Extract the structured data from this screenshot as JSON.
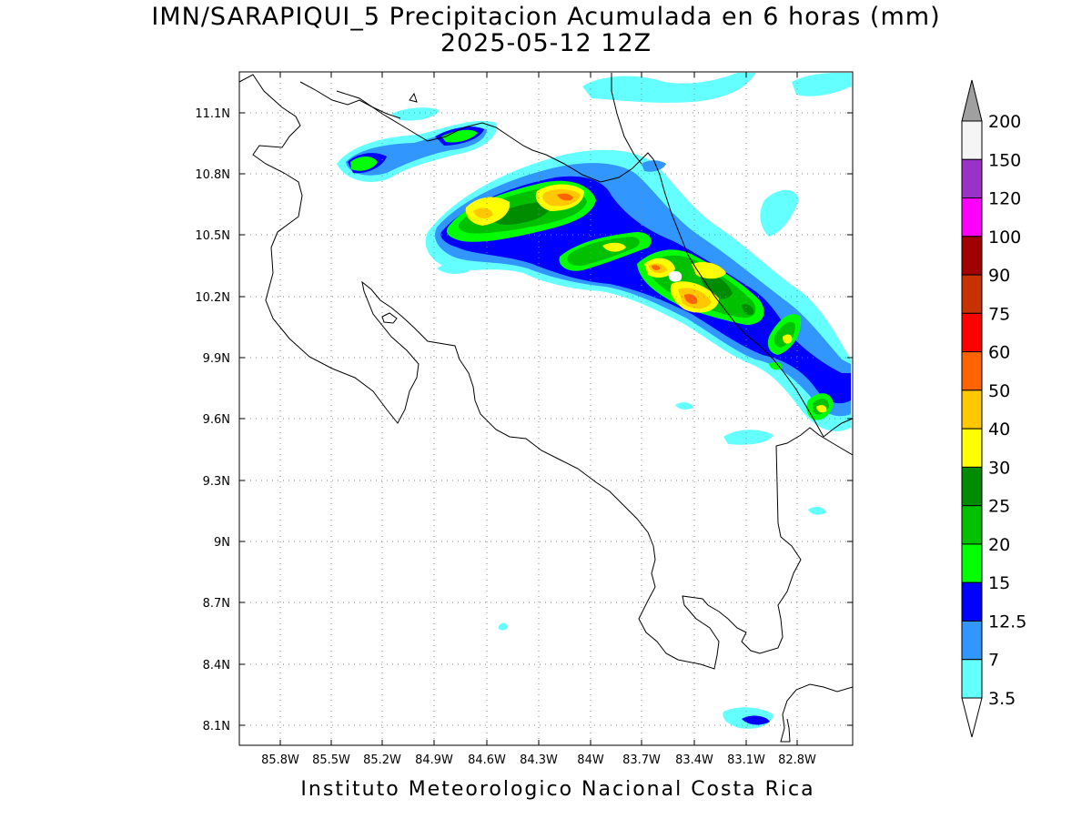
{
  "title": {
    "line1": "IMN/SARAPIQUI_5 Precipitacion Acumulada en 6 horas (mm)",
    "line2": "2025-05-12 12Z"
  },
  "footer": "Instituto Meteorologico Nacional Costa Rica",
  "axes": {
    "lon_labels": [
      "85.8W",
      "85.5W",
      "85.2W",
      "84.9W",
      "84.6W",
      "84.3W",
      "84W",
      "83.7W",
      "83.4W",
      "83.1W",
      "82.8W"
    ],
    "lat_labels": [
      "11.1N",
      "10.8N",
      "10.5N",
      "10.2N",
      "9.9N",
      "9.6N",
      "9.3N",
      "9N",
      "8.7N",
      "8.4N",
      "8.1N"
    ]
  },
  "colorbar": {
    "labels": [
      "200",
      "150",
      "120",
      "100",
      "90",
      "75",
      "60",
      "50",
      "40",
      "30",
      "25",
      "20",
      "15",
      "12.5",
      "7",
      "3.5"
    ],
    "colors": [
      "#ffffff",
      "#a0a0a0",
      "#f5f5f5",
      "#9a31c9",
      "#ff00ff",
      "#a00000",
      "#c83200",
      "#ff0000",
      "#ff6400",
      "#ffc800",
      "#ffff00",
      "#008c00",
      "#00c000",
      "#00ff00",
      "#0000ff",
      "#3296ff",
      "#64ffff"
    ]
  },
  "map": {
    "grid": true,
    "palette": {
      "light_cyan": "#64ffff",
      "light_blue": "#3296ff",
      "blue": "#0000ff",
      "lime": "#00ff00",
      "green": "#00c000",
      "dark_green": "#008c00",
      "yellow": "#ffff00",
      "gold": "#ffc800",
      "orange": "#ff6400",
      "red": "#ff0000"
    }
  }
}
